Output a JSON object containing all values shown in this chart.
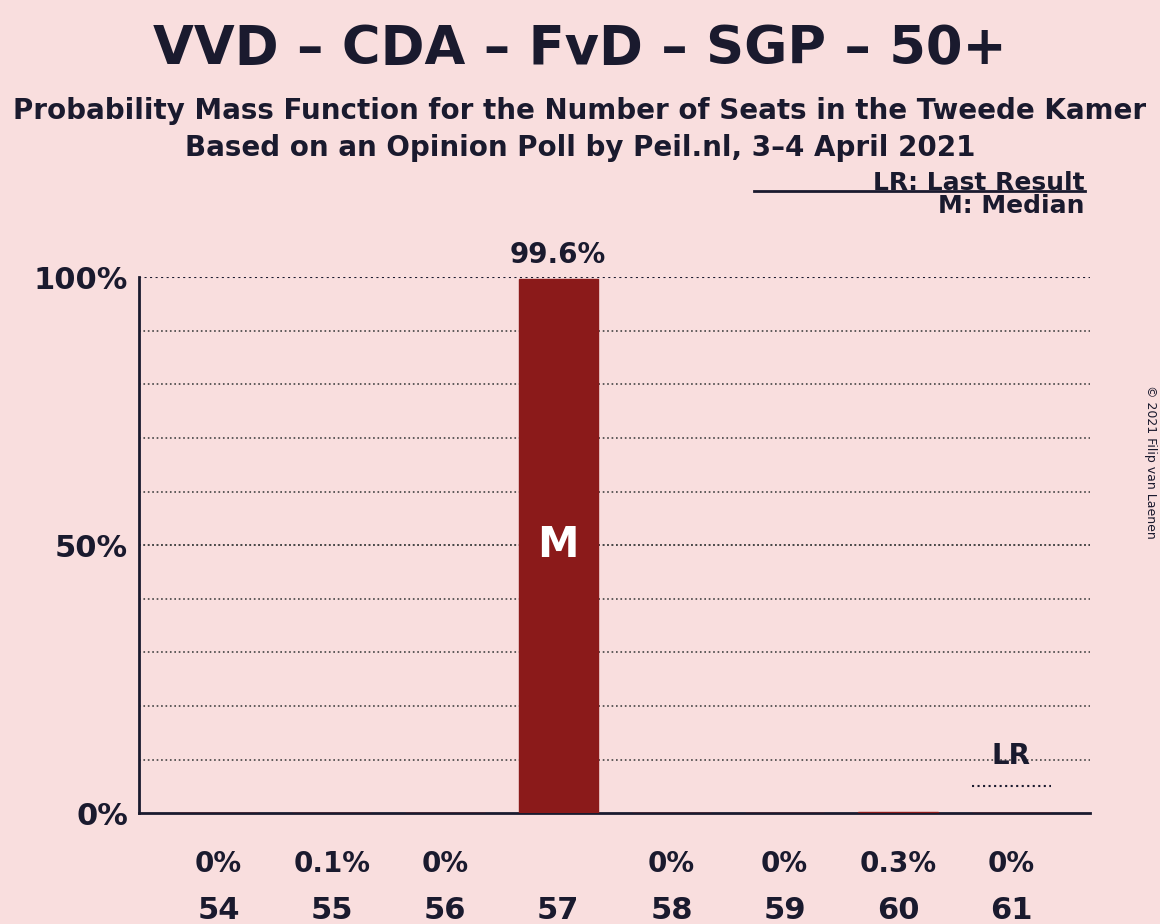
{
  "title": "VVD – CDA – FvD – SGP – 50+",
  "subtitle1": "Probability Mass Function for the Number of Seats in the Tweede Kamer",
  "subtitle2": "Based on an Opinion Poll by Peil.nl, 3–4 April 2021",
  "copyright": "© 2021 Filip van Laenen",
  "legend_lr": "LR: Last Result",
  "legend_m": "M: Median",
  "background_color": "#f9dede",
  "bar_color": "#8b1a1a",
  "bar_edge_color": "#8b1a1a",
  "text_color": "#1a1a2e",
  "seats": [
    54,
    55,
    56,
    57,
    58,
    59,
    60,
    61
  ],
  "probabilities": [
    0.0,
    0.1,
    0.0,
    99.6,
    0.0,
    0.0,
    0.3,
    0.0
  ],
  "prob_labels": [
    "0%",
    "0.1%",
    "0%",
    "",
    "0%",
    "0%",
    "0.3%",
    "0%"
  ],
  "median_seat": 57,
  "lr_seat": 61,
  "ylim": [
    0,
    100
  ],
  "yticks": [
    0,
    50,
    100
  ],
  "ytick_labels": [
    "0%",
    "50%",
    "100%"
  ],
  "grid_yticks": [
    10,
    20,
    30,
    40,
    50,
    60,
    70,
    80,
    90
  ],
  "title_fontsize": 38,
  "subtitle_fontsize": 20,
  "axis_label_fontsize": 22,
  "bar_label_fontsize": 20,
  "legend_fontsize": 18,
  "copyright_fontsize": 9
}
